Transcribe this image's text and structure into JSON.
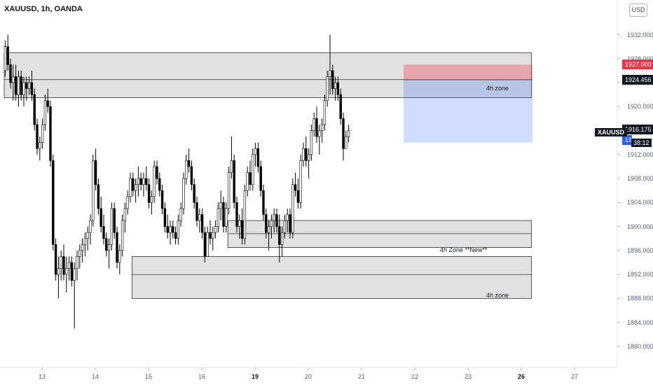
{
  "header": {
    "title": "XAUUSD, 1h, OANDA"
  },
  "currency_button": "USD",
  "y_axis": {
    "min": 1878,
    "max": 1938,
    "ticks": [
      "1932.000",
      "1928.000",
      "1924.000",
      "1920.000",
      "1916.000",
      "1912.000",
      "1908.000",
      "1904.000",
      "1900.000",
      "1896.000",
      "1892.000",
      "1888.000",
      "1884.000",
      "1880.000"
    ],
    "tick_values": [
      1932,
      1928,
      1924,
      1920,
      1916,
      1912,
      1908,
      1904,
      1900,
      1896,
      1892,
      1888,
      1884,
      1880
    ]
  },
  "x_axis": {
    "ticks": [
      {
        "label": "13",
        "bar": 10,
        "bold": false
      },
      {
        "label": "14",
        "bar": 30,
        "bold": false
      },
      {
        "label": "15",
        "bar": 50,
        "bold": false
      },
      {
        "label": "16",
        "bar": 70,
        "bold": false
      },
      {
        "label": "19",
        "bar": 90,
        "bold": true
      },
      {
        "label": "20",
        "bar": 110,
        "bold": false
      },
      {
        "label": "21",
        "bar": 130,
        "bold": false
      },
      {
        "label": "22",
        "bar": 150,
        "bold": false
      },
      {
        "label": "23",
        "bar": 170,
        "bold": false
      },
      {
        "label": "26",
        "bar": 190,
        "bold": true
      },
      {
        "label": "27",
        "bar": 210,
        "bold": false
      }
    ]
  },
  "price_labels": {
    "target": {
      "text": "1927.000",
      "value": 1927.0,
      "color": "#f23645"
    },
    "entry": {
      "text": "1924.456",
      "value": 1924.456,
      "color": "#131722"
    },
    "current": {
      "text": "1916.175",
      "value": 1916.175,
      "color": "#131722"
    },
    "stop_partial": {
      "text": "19",
      "color": "#2962ff"
    },
    "countdown": "38:12",
    "symbol": "XAUUSD"
  },
  "zones": [
    {
      "label": "",
      "top": 1929.0,
      "bottom": 1921.5,
      "start_bar": 0,
      "end_bar": 198,
      "midline": 1924.5
    },
    {
      "label": "4h zone",
      "top": 0,
      "bottom": 0,
      "start_bar": 0,
      "end_bar": 0,
      "midline": 0,
      "label_pos": "upper-right"
    },
    {
      "label": "4h Zone **New**",
      "top": 1901.0,
      "bottom": 1896.5,
      "start_bar": 84,
      "end_bar": 198,
      "midline": 1898.8
    },
    {
      "label": "4h zone",
      "top": 1895.0,
      "bottom": 1888.0,
      "start_bar": 48,
      "end_bar": 198,
      "midline": 1892.0
    }
  ],
  "position": {
    "entry": 1924.456,
    "target": 1927.0,
    "stop": 1914.0,
    "start_bar": 150,
    "end_bar": 198,
    "stop_zone_label": "4h zone"
  },
  "chart_data": {
    "type": "candlestick",
    "title": "XAUUSD, 1h, OANDA",
    "ylim": [
      1878,
      1938
    ],
    "candles": [
      [
        1926,
        1931,
        1925,
        1930
      ],
      [
        1930,
        1932,
        1926,
        1927
      ],
      [
        1927,
        1928,
        1923,
        1924
      ],
      [
        1924,
        1927,
        1921,
        1925
      ],
      [
        1925,
        1927,
        1921,
        1922
      ],
      [
        1922,
        1926,
        1920,
        1925
      ],
      [
        1925,
        1926,
        1921,
        1922
      ],
      [
        1922,
        1925,
        1920,
        1924
      ],
      [
        1924,
        1925,
        1921,
        1923
      ],
      [
        1923,
        1925,
        1922,
        1924
      ],
      [
        1924,
        1926,
        1921,
        1922
      ],
      [
        1922,
        1923,
        1916,
        1917
      ],
      [
        1917,
        1918,
        1912,
        1913
      ],
      [
        1913,
        1915,
        1911,
        1914
      ],
      [
        1914,
        1918,
        1913,
        1917
      ],
      [
        1917,
        1922,
        1916,
        1921
      ],
      [
        1921,
        1923,
        1919,
        1920
      ],
      [
        1920,
        1921,
        1910,
        1911
      ],
      [
        1911,
        1912,
        1896,
        1897
      ],
      [
        1897,
        1898,
        1891,
        1892
      ],
      [
        1892,
        1895,
        1888,
        1893
      ],
      [
        1893,
        1896,
        1891,
        1895
      ],
      [
        1895,
        1897,
        1891,
        1892
      ],
      [
        1892,
        1895,
        1889,
        1893
      ],
      [
        1893,
        1895,
        1891,
        1894
      ],
      [
        1894,
        1895,
        1890,
        1891
      ],
      [
        1891,
        1894,
        1883,
        1893
      ],
      [
        1893,
        1896,
        1891,
        1895
      ],
      [
        1895,
        1897,
        1893,
        1896
      ],
      [
        1896,
        1898,
        1894,
        1897
      ],
      [
        1897,
        1899,
        1895,
        1898
      ],
      [
        1898,
        1900,
        1896,
        1899
      ],
      [
        1899,
        1902,
        1897,
        1901
      ],
      [
        1901,
        1912,
        1900,
        1911
      ],
      [
        1911,
        1913,
        1906,
        1907
      ],
      [
        1907,
        1908,
        1902,
        1903
      ],
      [
        1903,
        1905,
        1899,
        1900
      ],
      [
        1900,
        1902,
        1897,
        1898
      ],
      [
        1898,
        1899,
        1895,
        1896
      ],
      [
        1896,
        1898,
        1893,
        1897
      ],
      [
        1897,
        1904,
        1896,
        1903
      ],
      [
        1903,
        1904,
        1898,
        1899
      ],
      [
        1899,
        1900,
        1893,
        1894
      ],
      [
        1894,
        1897,
        1892,
        1896
      ],
      [
        1896,
        1902,
        1895,
        1901
      ],
      [
        1901,
        1904,
        1899,
        1903
      ],
      [
        1903,
        1906,
        1902,
        1905
      ],
      [
        1905,
        1909,
        1904,
        1908
      ],
      [
        1908,
        1909,
        1905,
        1906
      ],
      [
        1906,
        1908,
        1904,
        1907
      ],
      [
        1907,
        1910,
        1905,
        1908
      ],
      [
        1908,
        1909,
        1906,
        1907
      ],
      [
        1907,
        1909,
        1905,
        1908
      ],
      [
        1908,
        1910,
        1906,
        1907
      ],
      [
        1907,
        1908,
        1903,
        1904
      ],
      [
        1904,
        1906,
        1902,
        1905
      ],
      [
        1905,
        1911,
        1904,
        1910
      ],
      [
        1910,
        1911,
        1907,
        1908
      ],
      [
        1908,
        1909,
        1905,
        1906
      ],
      [
        1906,
        1907,
        1902,
        1903
      ],
      [
        1903,
        1904,
        1899,
        1900
      ],
      [
        1900,
        1902,
        1898,
        1899
      ],
      [
        1899,
        1901,
        1897,
        1900
      ],
      [
        1900,
        1901,
        1898,
        1899
      ],
      [
        1899,
        1900,
        1897,
        1898
      ],
      [
        1898,
        1902,
        1897,
        1901
      ],
      [
        1901,
        1904,
        1900,
        1903
      ],
      [
        1903,
        1909,
        1902,
        1908
      ],
      [
        1908,
        1912,
        1907,
        1911
      ],
      [
        1911,
        1913,
        1909,
        1910
      ],
      [
        1910,
        1911,
        1906,
        1907
      ],
      [
        1907,
        1908,
        1903,
        1904
      ],
      [
        1904,
        1905,
        1900,
        1901
      ],
      [
        1901,
        1903,
        1899,
        1902
      ],
      [
        1902,
        1903,
        1898,
        1899
      ],
      [
        1899,
        1900,
        1894,
        1895
      ],
      [
        1895,
        1900,
        1895,
        1899
      ],
      [
        1899,
        1901,
        1897,
        1898
      ],
      [
        1898,
        1900,
        1896,
        1899
      ],
      [
        1899,
        1901,
        1898,
        1900
      ],
      [
        1900,
        1904,
        1899,
        1903
      ],
      [
        1903,
        1906,
        1901,
        1904
      ],
      [
        1904,
        1905,
        1899,
        1900
      ],
      [
        1900,
        1904,
        1899,
        1903
      ],
      [
        1903,
        1910,
        1902,
        1909
      ],
      [
        1909,
        1915,
        1908,
        1911
      ],
      [
        1911,
        1912,
        1903,
        1904
      ],
      [
        1904,
        1905,
        1899,
        1900
      ],
      [
        1900,
        1902,
        1898,
        1901
      ],
      [
        1901,
        1903,
        1897,
        1898
      ],
      [
        1898,
        1907,
        1897,
        1906
      ],
      [
        1906,
        1910,
        1905,
        1909
      ],
      [
        1909,
        1911,
        1906,
        1907
      ],
      [
        1907,
        1913,
        1906,
        1912
      ],
      [
        1912,
        1914,
        1910,
        1913
      ],
      [
        1913,
        1914,
        1909,
        1910
      ],
      [
        1910,
        1911,
        1905,
        1906
      ],
      [
        1906,
        1907,
        1901,
        1902
      ],
      [
        1902,
        1903,
        1898,
        1899
      ],
      [
        1899,
        1901,
        1896,
        1900
      ],
      [
        1900,
        1902,
        1898,
        1901
      ],
      [
        1901,
        1903,
        1899,
        1902
      ],
      [
        1902,
        1903,
        1899,
        1900
      ],
      [
        1900,
        1902,
        1894,
        1897
      ],
      [
        1897,
        1900,
        1895,
        1899
      ],
      [
        1899,
        1902,
        1898,
        1901
      ],
      [
        1901,
        1903,
        1899,
        1902
      ],
      [
        1902,
        1903,
        1898,
        1899
      ],
      [
        1899,
        1908,
        1898,
        1907
      ],
      [
        1907,
        1909,
        1905,
        1906
      ],
      [
        1906,
        1908,
        1903,
        1904
      ],
      [
        1904,
        1912,
        1903,
        1911
      ],
      [
        1911,
        1914,
        1910,
        1913
      ],
      [
        1913,
        1915,
        1910,
        1911
      ],
      [
        1911,
        1913,
        1908,
        1912
      ],
      [
        1912,
        1917,
        1911,
        1916
      ],
      [
        1916,
        1919,
        1915,
        1918
      ],
      [
        1918,
        1920,
        1914,
        1915
      ],
      [
        1915,
        1917,
        1912,
        1916
      ],
      [
        1916,
        1918,
        1914,
        1917
      ],
      [
        1917,
        1922,
        1916,
        1921
      ],
      [
        1921,
        1926,
        1920,
        1925
      ],
      [
        1925,
        1932,
        1922,
        1926
      ],
      [
        1926,
        1927,
        1922,
        1923
      ],
      [
        1923,
        1925,
        1921,
        1924
      ],
      [
        1924,
        1925,
        1921,
        1922
      ],
      [
        1922,
        1923,
        1917,
        1918
      ],
      [
        1918,
        1919,
        1911,
        1913
      ],
      [
        1913,
        1916,
        1913,
        1915
      ],
      [
        1915,
        1917,
        1914,
        1916
      ]
    ]
  }
}
